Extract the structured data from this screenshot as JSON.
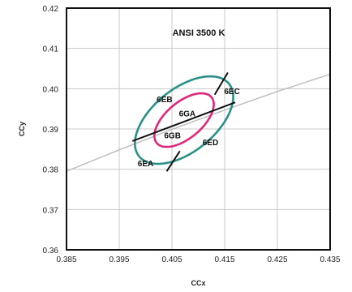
{
  "chart_data": {
    "type": "scatter",
    "title": "ANSI 3500 K",
    "xlabel": "CCx",
    "ylabel": "CCy",
    "xlim": [
      0.385,
      0.435
    ],
    "ylim": [
      0.36,
      0.42
    ],
    "x_ticks": [
      0.385,
      0.395,
      0.405,
      0.415,
      0.425,
      0.435
    ],
    "x_tick_labels": [
      "0.385",
      "0.395",
      "0.405",
      "0.415",
      "0.425",
      "0.435"
    ],
    "y_ticks": [
      0.36,
      0.37,
      0.38,
      0.39,
      0.4,
      0.41,
      0.42
    ],
    "y_tick_labels": [
      "0.36",
      "0.37",
      "0.38",
      "0.39",
      "0.40",
      "0.41",
      "0.42"
    ],
    "grid": true,
    "series": [],
    "blackbody_curve": {
      "color": "#bbbbbb",
      "x": [
        0.385,
        0.395,
        0.405,
        0.415,
        0.425,
        0.435
      ],
      "y": [
        0.3795,
        0.3848,
        0.3899,
        0.3947,
        0.3993,
        0.4036
      ]
    },
    "ellipses": [
      {
        "color": "#2a9088",
        "center": [
          0.4073,
          0.3922
        ],
        "semi_axes": [
          0.0126,
          0.0068
        ],
        "angle_deg": 53
      },
      {
        "color": "#e0287a",
        "center": [
          0.4073,
          0.3922
        ],
        "semi_axes": [
          0.0078,
          0.0039
        ],
        "angle_deg": 53
      }
    ],
    "division_lines": [
      {
        "color": "#111111",
        "points": [
          [
            0.3975,
            0.387
          ],
          [
            0.417,
            0.3966
          ]
        ]
      },
      {
        "color": "#111111",
        "points": [
          [
            0.404,
            0.3795
          ],
          [
            0.4065,
            0.3845
          ]
        ]
      },
      {
        "color": "#111111",
        "points": [
          [
            0.4131,
            0.3985
          ],
          [
            0.4156,
            0.404
          ]
        ]
      }
    ],
    "bin_labels": [
      {
        "text": "6EB",
        "x": 0.4036,
        "y": 0.3975
      },
      {
        "text": "6EC",
        "x": 0.4164,
        "y": 0.3995
      },
      {
        "text": "6GA",
        "x": 0.4079,
        "y": 0.3939
      },
      {
        "text": "6GB",
        "x": 0.4051,
        "y": 0.3885
      },
      {
        "text": "6ED",
        "x": 0.4123,
        "y": 0.3868
      },
      {
        "text": "6EA",
        "x": 0.4,
        "y": 0.3815
      }
    ]
  }
}
